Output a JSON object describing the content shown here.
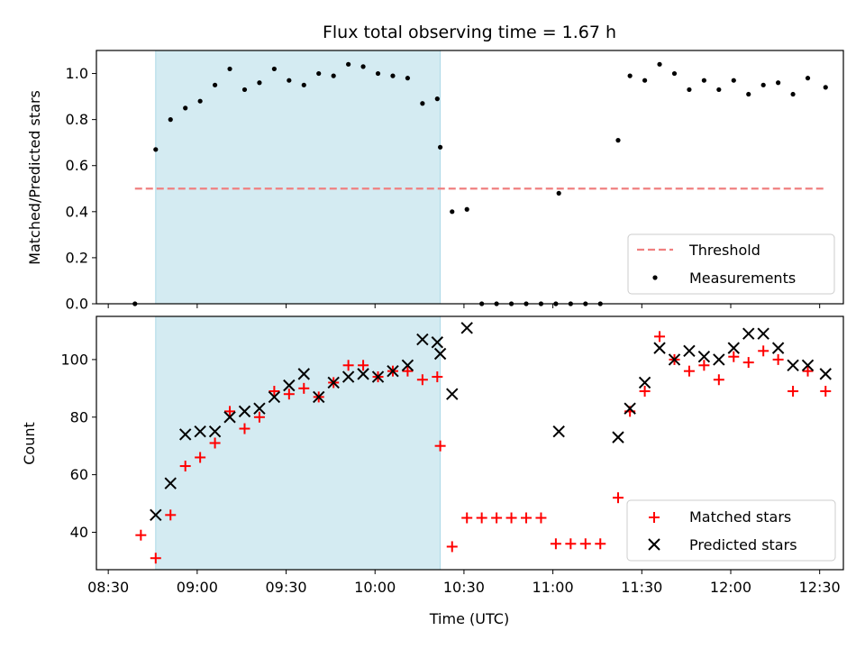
{
  "chart_data": [
    {
      "type": "scatter",
      "title": "Flux total observing time = 1.67 h",
      "xlabel": "",
      "ylabel": "Matched/Predicted stars",
      "ylim": [
        0.0,
        1.1
      ],
      "yticks": [
        "0.0",
        "0.2",
        "0.4",
        "0.6",
        "0.8",
        "1.0"
      ],
      "shaded_interval": [
        "08:46",
        "10:22"
      ],
      "shade_color": "#add8e6",
      "legend_position": "lower-right",
      "threshold": {
        "name": "Threshold",
        "y": 0.5,
        "x_start": "08:39",
        "x_end": "12:32",
        "color": "#f08080"
      },
      "series": [
        {
          "name": "Measurements",
          "marker": "dot",
          "color": "#000000",
          "points": [
            [
              "08:39",
              0.0
            ],
            [
              "08:46",
              0.67
            ],
            [
              "08:51",
              0.8
            ],
            [
              "08:56",
              0.85
            ],
            [
              "09:01",
              0.88
            ],
            [
              "09:06",
              0.95
            ],
            [
              "09:11",
              1.02
            ],
            [
              "09:16",
              0.93
            ],
            [
              "09:21",
              0.96
            ],
            [
              "09:26",
              1.02
            ],
            [
              "09:31",
              0.97
            ],
            [
              "09:36",
              0.95
            ],
            [
              "09:41",
              1.0
            ],
            [
              "09:46",
              0.99
            ],
            [
              "09:51",
              1.04
            ],
            [
              "09:56",
              1.03
            ],
            [
              "10:01",
              1.0
            ],
            [
              "10:06",
              0.99
            ],
            [
              "10:11",
              0.98
            ],
            [
              "10:16",
              0.87
            ],
            [
              "10:21",
              0.89
            ],
            [
              "10:22",
              0.68
            ],
            [
              "10:26",
              0.4
            ],
            [
              "10:31",
              0.41
            ],
            [
              "10:36",
              0.0
            ],
            [
              "10:41",
              0.0
            ],
            [
              "10:46",
              0.0
            ],
            [
              "10:51",
              0.0
            ],
            [
              "10:56",
              0.0
            ],
            [
              "11:01",
              0.0
            ],
            [
              "11:02",
              0.48
            ],
            [
              "11:06",
              0.0
            ],
            [
              "11:11",
              0.0
            ],
            [
              "11:16",
              0.0
            ],
            [
              "11:22",
              0.71
            ],
            [
              "11:26",
              0.99
            ],
            [
              "11:31",
              0.97
            ],
            [
              "11:36",
              1.04
            ],
            [
              "11:41",
              1.0
            ],
            [
              "11:46",
              0.93
            ],
            [
              "11:51",
              0.97
            ],
            [
              "11:56",
              0.93
            ],
            [
              "12:01",
              0.97
            ],
            [
              "12:06",
              0.91
            ],
            [
              "12:11",
              0.95
            ],
            [
              "12:16",
              0.96
            ],
            [
              "12:21",
              0.91
            ],
            [
              "12:26",
              0.98
            ],
            [
              "12:32",
              0.94
            ]
          ]
        }
      ]
    },
    {
      "type": "scatter",
      "title": "",
      "xlabel": "Time (UTC)",
      "ylabel": "Count",
      "ylim": [
        27,
        115
      ],
      "yticks": [
        "40",
        "60",
        "80",
        "100"
      ],
      "xlim": [
        "08:26",
        "12:38"
      ],
      "xticks": [
        "08:30",
        "09:00",
        "09:30",
        "10:00",
        "10:30",
        "11:00",
        "11:30",
        "12:00",
        "12:30"
      ],
      "shaded_interval": [
        "08:46",
        "10:22"
      ],
      "legend_position": "lower-right",
      "series": [
        {
          "name": "Matched stars",
          "marker": "plus",
          "color": "#ff0000",
          "points": [
            [
              "08:41",
              39
            ],
            [
              "08:46",
              31
            ],
            [
              "08:51",
              46
            ],
            [
              "08:56",
              63
            ],
            [
              "09:01",
              66
            ],
            [
              "09:06",
              71
            ],
            [
              "09:11",
              82
            ],
            [
              "09:16",
              76
            ],
            [
              "09:21",
              80
            ],
            [
              "09:26",
              89
            ],
            [
              "09:31",
              88
            ],
            [
              "09:36",
              90
            ],
            [
              "09:41",
              87
            ],
            [
              "09:46",
              92
            ],
            [
              "09:51",
              98
            ],
            [
              "09:56",
              98
            ],
            [
              "10:01",
              94
            ],
            [
              "10:06",
              96
            ],
            [
              "10:11",
              96
            ],
            [
              "10:16",
              93
            ],
            [
              "10:21",
              94
            ],
            [
              "10:22",
              70
            ],
            [
              "10:26",
              35
            ],
            [
              "10:31",
              45
            ],
            [
              "10:36",
              45
            ],
            [
              "10:41",
              45
            ],
            [
              "10:46",
              45
            ],
            [
              "10:51",
              45
            ],
            [
              "10:56",
              45
            ],
            [
              "11:01",
              36
            ],
            [
              "11:06",
              36
            ],
            [
              "11:11",
              36
            ],
            [
              "11:16",
              36
            ],
            [
              "11:22",
              52
            ],
            [
              "11:26",
              82
            ],
            [
              "11:31",
              89
            ],
            [
              "11:36",
              108
            ],
            [
              "11:41",
              100
            ],
            [
              "11:46",
              96
            ],
            [
              "11:51",
              98
            ],
            [
              "11:56",
              93
            ],
            [
              "12:01",
              101
            ],
            [
              "12:06",
              99
            ],
            [
              "12:11",
              103
            ],
            [
              "12:16",
              100
            ],
            [
              "12:21",
              89
            ],
            [
              "12:26",
              96
            ],
            [
              "12:32",
              89
            ]
          ]
        },
        {
          "name": "Predicted stars",
          "marker": "x",
          "color": "#000000",
          "points": [
            [
              "08:46",
              46
            ],
            [
              "08:51",
              57
            ],
            [
              "08:56",
              74
            ],
            [
              "09:01",
              75
            ],
            [
              "09:06",
              75
            ],
            [
              "09:11",
              80
            ],
            [
              "09:16",
              82
            ],
            [
              "09:21",
              83
            ],
            [
              "09:26",
              87
            ],
            [
              "09:31",
              91
            ],
            [
              "09:36",
              95
            ],
            [
              "09:41",
              87
            ],
            [
              "09:46",
              92
            ],
            [
              "09:51",
              94
            ],
            [
              "09:56",
              95
            ],
            [
              "10:01",
              94
            ],
            [
              "10:06",
              96
            ],
            [
              "10:11",
              98
            ],
            [
              "10:16",
              107
            ],
            [
              "10:21",
              106
            ],
            [
              "10:22",
              102
            ],
            [
              "10:26",
              88
            ],
            [
              "10:31",
              111
            ],
            [
              "11:02",
              75
            ],
            [
              "11:22",
              73
            ],
            [
              "11:26",
              83
            ],
            [
              "11:31",
              92
            ],
            [
              "11:36",
              104
            ],
            [
              "11:41",
              100
            ],
            [
              "11:46",
              103
            ],
            [
              "11:51",
              101
            ],
            [
              "11:56",
              100
            ],
            [
              "12:01",
              104
            ],
            [
              "12:06",
              109
            ],
            [
              "12:11",
              109
            ],
            [
              "12:16",
              104
            ],
            [
              "12:21",
              98
            ],
            [
              "12:26",
              98
            ],
            [
              "12:32",
              95
            ]
          ]
        }
      ]
    }
  ]
}
